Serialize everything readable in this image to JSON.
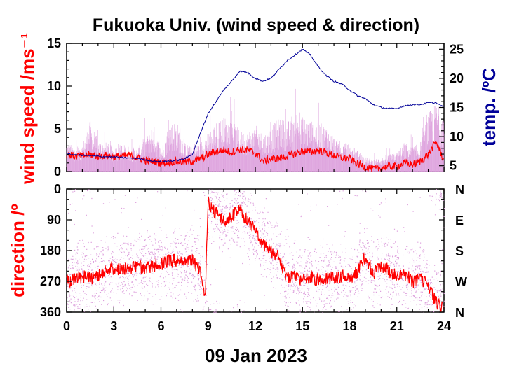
{
  "chart_data": [
    {
      "panel": "wind speed & temperature",
      "type": "line",
      "title": "Fukuoka Univ. (wind speed & direction)",
      "ylabel": "wind speed /ms⁻¹",
      "y2label": "temp. /ºC",
      "xlabel": "09 Jan 2023",
      "xlim": [
        0,
        24
      ],
      "ylim": [
        0,
        15
      ],
      "y2lim": [
        4,
        26
      ],
      "x_ticks": [
        0,
        3,
        6,
        9,
        12,
        15,
        18,
        21,
        24
      ],
      "y_ticks": [
        0,
        5,
        10,
        15
      ],
      "y2_ticks": [
        5,
        10,
        15,
        20,
        25
      ],
      "colors": {
        "wind_mean": "#ff0000",
        "wind_gust": "#dda0dd",
        "temperature": "#000099",
        "ylabel": "#ff0000",
        "y2label": "#000099"
      },
      "series": [
        {
          "key": "wind_mean",
          "x": [
            0,
            0.5,
            1,
            1.5,
            2,
            2.5,
            3,
            3.5,
            4,
            4.5,
            5,
            5.5,
            6,
            6.5,
            7,
            7.5,
            8,
            8.5,
            9,
            9.5,
            10,
            10.5,
            11,
            11.5,
            12,
            12.5,
            13,
            13.5,
            14,
            14.5,
            15,
            15.5,
            16,
            16.5,
            17,
            17.5,
            18,
            18.5,
            19,
            19.5,
            20,
            20.5,
            21,
            21.5,
            22,
            22.5,
            23,
            23.5,
            24
          ],
          "values": [
            2.0,
            1.8,
            1.8,
            2.0,
            1.8,
            1.9,
            1.7,
            1.8,
            1.9,
            1.6,
            1.3,
            1.2,
            1.0,
            1.1,
            1.2,
            1.1,
            1.2,
            1.5,
            2.0,
            2.4,
            2.5,
            2.3,
            2.6,
            2.5,
            2.2,
            1.2,
            1.5,
            1.5,
            1.8,
            2.1,
            2.4,
            2.3,
            2.5,
            2.2,
            1.9,
            1.6,
            1.5,
            0.9,
            0.5,
            0.3,
            0.4,
            0.6,
            0.6,
            1.0,
            0.8,
            1.2,
            2.0,
            3.5,
            1.3
          ]
        },
        {
          "key": "wind_gust",
          "x": [
            0,
            0.5,
            1,
            1.5,
            2,
            2.5,
            3,
            3.5,
            4,
            4.5,
            5,
            5.5,
            6,
            6.5,
            7,
            7.5,
            8,
            8.5,
            9,
            9.5,
            10,
            10.5,
            11,
            11.5,
            12,
            12.5,
            13,
            13.5,
            14,
            14.5,
            15,
            15.5,
            16,
            16.5,
            17,
            17.5,
            18,
            18.5,
            19,
            19.5,
            20,
            20.5,
            21,
            21.5,
            22,
            22.5,
            23,
            23.5,
            24
          ],
          "values": [
            3.0,
            2.6,
            2.8,
            5.2,
            3.2,
            3.0,
            2.5,
            2.8,
            2.6,
            2.4,
            3.4,
            5.0,
            2.2,
            5.0,
            5.2,
            3.0,
            2.4,
            3.0,
            4.0,
            5.0,
            5.6,
            5.3,
            4.2,
            4.0,
            4.8,
            3.8,
            4.5,
            5.5,
            5.2,
            5.2,
            5.6,
            5.2,
            5.0,
            4.8,
            3.6,
            3.0,
            2.8,
            2.2,
            1.5,
            1.2,
            1.5,
            1.8,
            2.0,
            3.0,
            2.5,
            3.0,
            6.0,
            7.0,
            6.0
          ]
        },
        {
          "key": "temperature",
          "x": [
            0,
            1,
            2,
            3,
            4,
            4.5,
            5,
            5.5,
            6,
            7,
            7.5,
            8,
            8.5,
            9,
            9.5,
            10,
            10.5,
            11,
            11.5,
            12,
            12.5,
            13,
            13.5,
            14,
            14.5,
            15,
            15.5,
            16,
            16.5,
            17,
            17.5,
            18,
            18.5,
            19,
            19.5,
            20,
            20.5,
            21,
            21.5,
            22,
            22.5,
            23,
            23.5,
            24
          ],
          "values": [
            7.0,
            6.8,
            6.6,
            6.5,
            6.3,
            6.3,
            6.0,
            5.8,
            5.7,
            5.9,
            6.2,
            7.0,
            10.5,
            14.0,
            16.0,
            18.0,
            19.5,
            21.2,
            21.0,
            20.0,
            19.5,
            20.0,
            21.5,
            23.0,
            24.0,
            25.0,
            24.0,
            22.0,
            20.5,
            19.5,
            19.0,
            18.0,
            17.0,
            16.5,
            15.5,
            15.0,
            14.8,
            14.8,
            15.3,
            15.5,
            15.5,
            15.8,
            15.8,
            15.0
          ]
        }
      ]
    },
    {
      "panel": "wind direction",
      "type": "scatter",
      "ylabel": "direction /º",
      "xlim": [
        0,
        24
      ],
      "ylim": [
        360,
        0
      ],
      "x_ticks": [
        0,
        3,
        6,
        9,
        12,
        15,
        18,
        21,
        24
      ],
      "x_tick_labels": [
        "0",
        "3",
        "6",
        "9",
        "12",
        "15",
        "18",
        "21",
        "24"
      ],
      "y_ticks": [
        0,
        90,
        180,
        270,
        360
      ],
      "y_tick_labels": [
        "0",
        "90",
        "180",
        "270",
        "360"
      ],
      "y2_tick_labels": [
        "N",
        "E",
        "S",
        "W",
        "N"
      ],
      "colors": {
        "direction_mean": "#ff0000",
        "direction_scatter": "#dda0dd",
        "ylabel": "#ff0000"
      },
      "series": [
        {
          "key": "direction_mean",
          "x": [
            0,
            0.5,
            1,
            1.5,
            2,
            2.5,
            3,
            3.5,
            4,
            4.5,
            5,
            5.5,
            6,
            6.5,
            7,
            7.5,
            8,
            8.5,
            8.8,
            9,
            9.5,
            10,
            10.5,
            11,
            11.5,
            12,
            12.5,
            13,
            13.5,
            14,
            14.5,
            15,
            15.5,
            16,
            16.5,
            17,
            17.5,
            18,
            18.5,
            19,
            19.5,
            20,
            20.5,
            21,
            21.5,
            22,
            22.5,
            23,
            23.5,
            24
          ],
          "values": [
            270,
            265,
            255,
            262,
            250,
            240,
            230,
            235,
            230,
            225,
            232,
            225,
            218,
            212,
            208,
            215,
            212,
            240,
            320,
            40,
            70,
            95,
            80,
            60,
            95,
            120,
            160,
            180,
            200,
            260,
            255,
            270,
            255,
            265,
            262,
            258,
            255,
            260,
            245,
            200,
            250,
            220,
            240,
            250,
            250,
            270,
            265,
            280,
            330,
            350
          ]
        }
      ]
    }
  ]
}
